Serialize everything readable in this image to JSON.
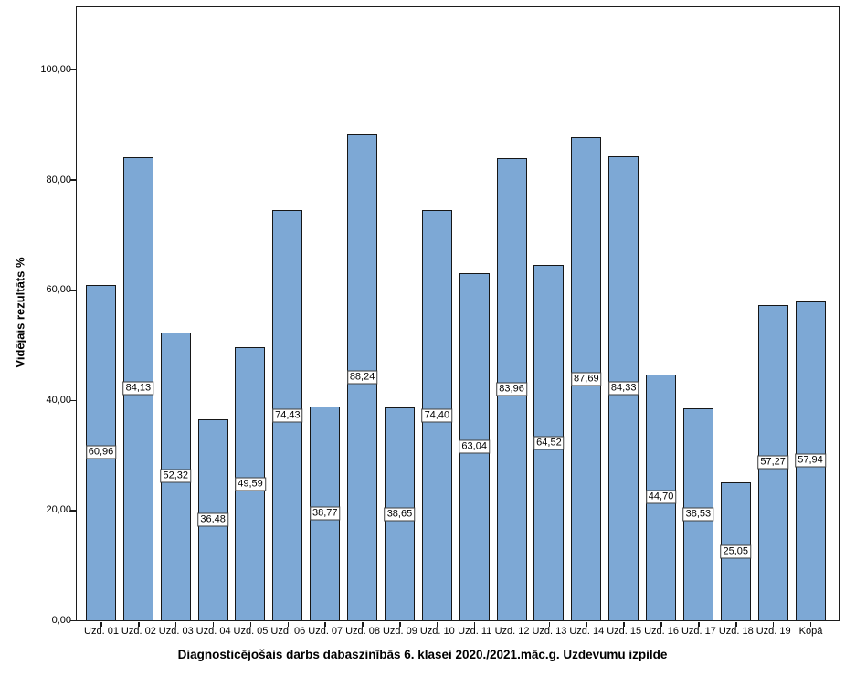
{
  "chart_data": {
    "type": "bar",
    "title": "Diagnosticējošais darbs dabaszinībās 6. klasei 2020./2021.māc.g. Uzdevumu izpilde",
    "ylabel": "Vidējais rezultāts %",
    "xlabel": "",
    "categories": [
      "Uzd. 01",
      "Uzd. 02",
      "Uzd. 03",
      "Uzd. 04",
      "Uzd. 05",
      "Uzd. 06",
      "Uzd. 07",
      "Uzd. 08",
      "Uzd. 09",
      "Uzd. 10",
      "Uzd. 11",
      "Uzd. 12",
      "Uzd. 13",
      "Uzd. 14",
      "Uzd. 15",
      "Uzd. 16",
      "Uzd. 17",
      "Uzd. 18",
      "Uzd. 19",
      "Kopā"
    ],
    "values": [
      60.96,
      84.13,
      52.32,
      36.48,
      49.59,
      74.43,
      38.77,
      88.24,
      38.65,
      74.4,
      63.04,
      83.96,
      64.52,
      87.69,
      84.33,
      44.7,
      38.53,
      25.05,
      57.27,
      57.94
    ],
    "value_labels": [
      "60,96",
      "84,13",
      "52,32",
      "36,48",
      "49,59",
      "74,43",
      "38,77",
      "88,24",
      "38,65",
      "74,40",
      "63,04",
      "83,96",
      "64,52",
      "87,69",
      "84,33",
      "44,70",
      "38,53",
      "25,05",
      "57,27",
      "57,94"
    ],
    "yticks": [
      0,
      20,
      40,
      60,
      80,
      100
    ],
    "ytick_labels": [
      "0,00",
      "20,00",
      "40,00",
      "60,00",
      "80,00",
      "100,00"
    ],
    "ylim": [
      0,
      111.3
    ],
    "grid": false,
    "legend": "none",
    "bar_color": "#7da8d5",
    "bar_border_color": "#161616"
  }
}
